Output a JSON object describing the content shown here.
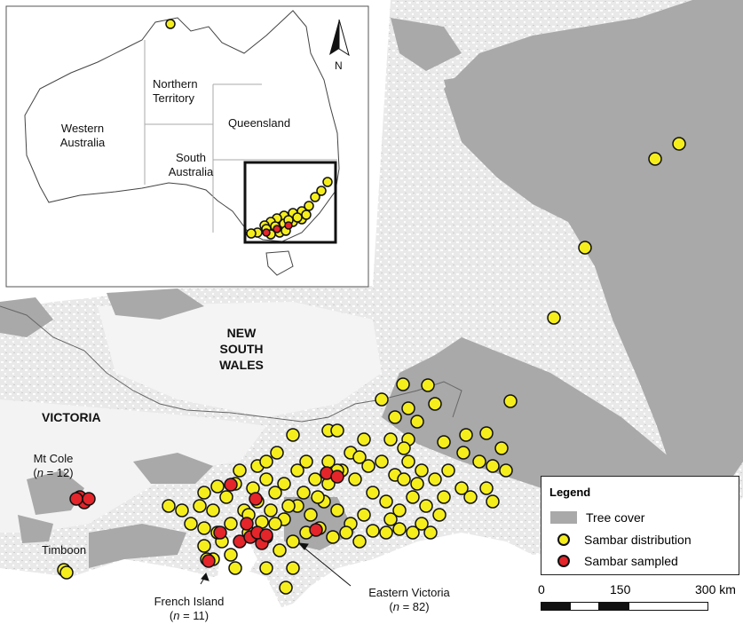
{
  "inset": {
    "regions": [
      {
        "name": "Western Australia",
        "lines": [
          "Western",
          "Australia"
        ]
      },
      {
        "name": "Northern Territory",
        "lines": [
          "Northern",
          "Territory"
        ]
      },
      {
        "name": "Queensland",
        "lines": [
          "Queensland"
        ]
      },
      {
        "name": "South Australia",
        "lines": [
          "South",
          "Australia"
        ]
      }
    ],
    "north_label": "N"
  },
  "main": {
    "nsw_lines": [
      "NEW",
      "SOUTH",
      "WALES"
    ],
    "victoria": "VICTORIA",
    "places": {
      "mt_cole": {
        "name": "Mt Cole",
        "n_prefix": "(",
        "n_var": "n",
        "n_suffix": " = 12)"
      },
      "timboon": {
        "name": "Timboon"
      },
      "french_island": {
        "name": "French Island",
        "n_prefix": "(",
        "n_var": "n",
        "n_suffix": " = 11)"
      },
      "eastern_victoria": {
        "name": "Eastern Victoria",
        "n_prefix": "(",
        "n_var": "n",
        "n_suffix": " = 82)"
      }
    }
  },
  "legend": {
    "title": "Legend",
    "items": [
      {
        "label": "Tree cover",
        "symbol": "swatch",
        "color": "#a9a9a9"
      },
      {
        "label": "Sambar distribution",
        "symbol": "dot",
        "color": "#f5ee1c"
      },
      {
        "label": "Sambar sampled",
        "symbol": "dot",
        "color": "#e4252a"
      }
    ]
  },
  "scale": {
    "labels": [
      "0",
      "150",
      "300 km"
    ]
  },
  "colors": {
    "distribution": "#f5ee1c",
    "sampled": "#e4252a",
    "tree": "#a9a9a9",
    "outline": "#111111"
  }
}
